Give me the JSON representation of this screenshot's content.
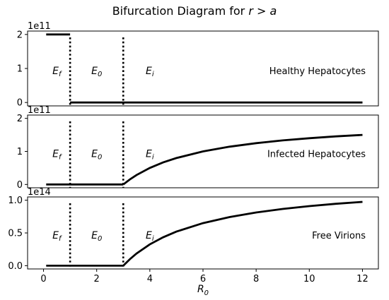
{
  "chart_data": {
    "type": "line",
    "title_main": "Bifurcation Diagram for ",
    "title_math": "r > a",
    "xlabel": "R",
    "xlabel_sub": "0",
    "xlim": [
      -0.6,
      12.6
    ],
    "xticks": [
      0,
      2,
      4,
      6,
      8,
      10,
      12
    ],
    "color": "#000000",
    "thresholds": [
      1,
      3
    ],
    "regions": [
      {
        "name": "E",
        "sub": "f",
        "x": 0.5
      },
      {
        "name": "E",
        "sub": "0",
        "x": 2.0
      },
      {
        "name": "E",
        "sub": "i",
        "x": 4.0
      }
    ],
    "panels": [
      {
        "label": "Healthy Hepatocytes",
        "offset_text": "1e11",
        "ylim": [
          -0.1,
          2.1
        ],
        "yticks": [
          0,
          1,
          2
        ],
        "ytick_labels": [
          "0",
          "1",
          "2"
        ],
        "series": [
          {
            "x": [
              0.1,
              1
            ],
            "y": [
              2,
              2
            ]
          },
          {
            "x": [
              1,
              12
            ],
            "y": [
              0,
              0
            ]
          }
        ]
      },
      {
        "label": "Infected Hepatocytes",
        "offset_text": "1e11",
        "ylim": [
          -0.1,
          2.1
        ],
        "yticks": [
          0,
          1,
          2
        ],
        "ytick_labels": [
          "0",
          "1",
          "2"
        ],
        "series": [
          {
            "x": [
              0.1,
              1,
              2,
              3
            ],
            "y": [
              0,
              0,
              0,
              0
            ]
          },
          {
            "x": [
              3,
              3.25,
              3.5,
              4,
              4.5,
              5,
              6,
              7,
              8,
              9,
              10,
              11,
              12
            ],
            "y": [
              0,
              0.154,
              0.286,
              0.5,
              0.667,
              0.8,
              1.0,
              1.143,
              1.25,
              1.333,
              1.4,
              1.455,
              1.5
            ]
          }
        ]
      },
      {
        "label": "Free Virions",
        "offset_text": "1e14",
        "ylim": [
          -0.05,
          1.05
        ],
        "yticks": [
          0,
          0.5,
          1.0
        ],
        "ytick_labels": [
          "0.0",
          "0.5",
          "1.0"
        ],
        "series": [
          {
            "x": [
              0.1,
              1,
              2,
              3
            ],
            "y": [
              0,
              0,
              0,
              0
            ]
          },
          {
            "x": [
              3,
              3.25,
              3.5,
              4,
              4.5,
              5,
              6,
              7,
              8,
              9,
              10,
              11,
              12
            ],
            "y": [
              0,
              0.1,
              0.186,
              0.325,
              0.433,
              0.52,
              0.65,
              0.743,
              0.8125,
              0.867,
              0.91,
              0.945,
              0.975
            ]
          }
        ]
      }
    ]
  }
}
